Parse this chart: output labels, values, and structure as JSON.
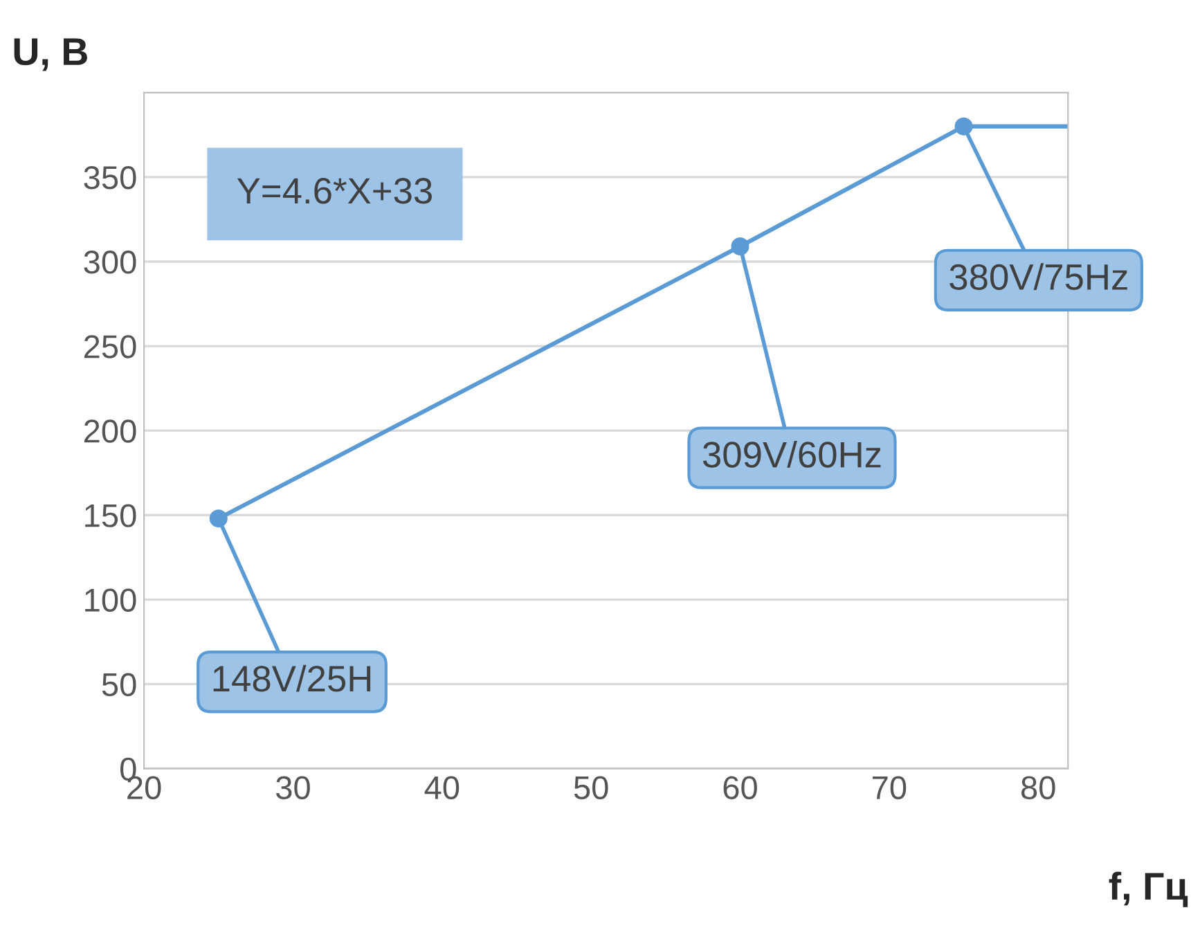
{
  "chart_data": {
    "type": "line",
    "xlabel": "f, Гц",
    "ylabel": "U, B",
    "x": [
      25,
      60,
      75,
      82
    ],
    "series": [
      {
        "type": "line",
        "color": "#5b9bd5",
        "values": [
          148,
          309,
          380,
          380
        ],
        "marker": "none"
      },
      {
        "type": "scatter",
        "color": "#5b9bd5",
        "x": [
          25,
          60,
          75
        ],
        "values": [
          148,
          309,
          380
        ],
        "marker": "circle"
      }
    ],
    "annotations": [
      "Y=4.6*X+33",
      {
        "text": "148V/25H",
        "x": 25,
        "y": 148
      },
      {
        "text": "309V/60Hz",
        "x": 60,
        "y": 309
      },
      {
        "text": "380V/75Hz",
        "x": 75,
        "y": 380
      }
    ],
    "xlim": [
      20,
      82
    ],
    "xticks": [
      20,
      30,
      40,
      50,
      60,
      70,
      80
    ],
    "ylim": [
      0,
      400
    ],
    "yticks": [
      0,
      50,
      100,
      150,
      200,
      250,
      300,
      350
    ],
    "grid": "y",
    "legend": false
  }
}
